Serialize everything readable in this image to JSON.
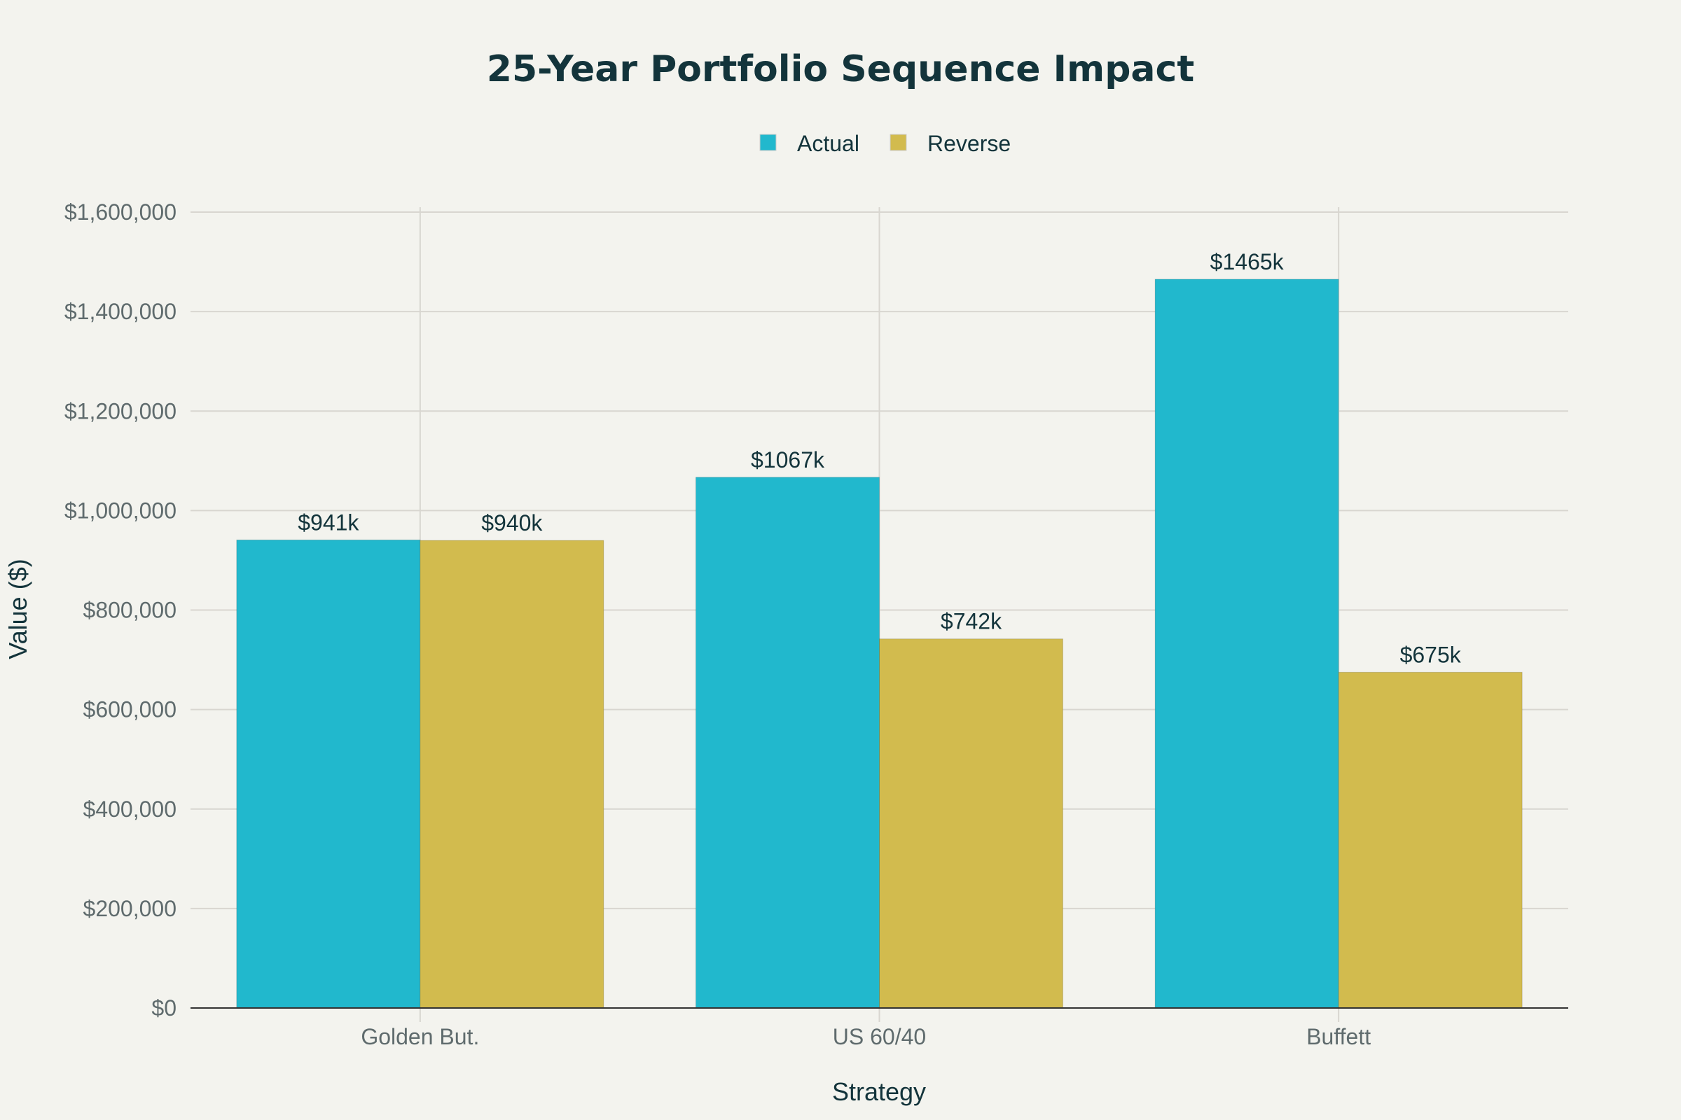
{
  "chart_data": {
    "type": "bar",
    "title": "25-Year Portfolio Sequence Impact",
    "xlabel": "Strategy",
    "ylabel": "Value ($)",
    "categories": [
      "Golden But.",
      "US 60/40",
      "Buffett"
    ],
    "series": [
      {
        "name": "Actual",
        "values": [
          941000,
          1067000,
          1465000
        ],
        "labels": [
          "$941k",
          "$1067k",
          "$1465k"
        ],
        "color": "#21b8cd"
      },
      {
        "name": "Reverse",
        "values": [
          940000,
          742000,
          675000
        ],
        "labels": [
          "$940k",
          "$742k",
          "$675k"
        ],
        "color": "#d2bb4e"
      }
    ],
    "ylim": [
      0,
      1600000
    ],
    "yticks": [
      0,
      200000,
      400000,
      600000,
      800000,
      1000000,
      1200000,
      1400000,
      1600000
    ],
    "ytick_labels": [
      "$0",
      "$200,000",
      "$400,000",
      "$600,000",
      "$800,000",
      "$1,000,000",
      "$1,200,000",
      "$1,400,000",
      "$1,600,000"
    ],
    "grid": true,
    "legend_position": "top-center",
    "background": "#f3f3ee"
  }
}
